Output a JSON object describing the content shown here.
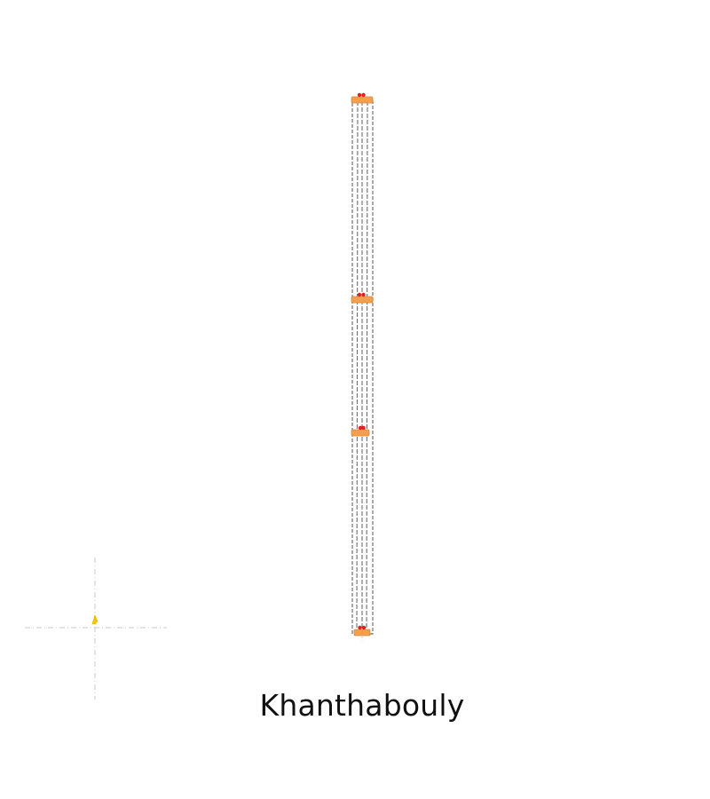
{
  "caption": "Khanthabouly",
  "colors": {
    "road_line": "#6e6e6e",
    "road_fill": "#ffffff",
    "junction": "#f0a050",
    "junction_stroke": "#d98a3a",
    "marker": "#e02020",
    "origin_marker": "#f5c400",
    "crosshair": "#c8c8c8"
  },
  "icons": {
    "junction": "junction-marker-icon",
    "origin": "origin-marker-icon"
  }
}
